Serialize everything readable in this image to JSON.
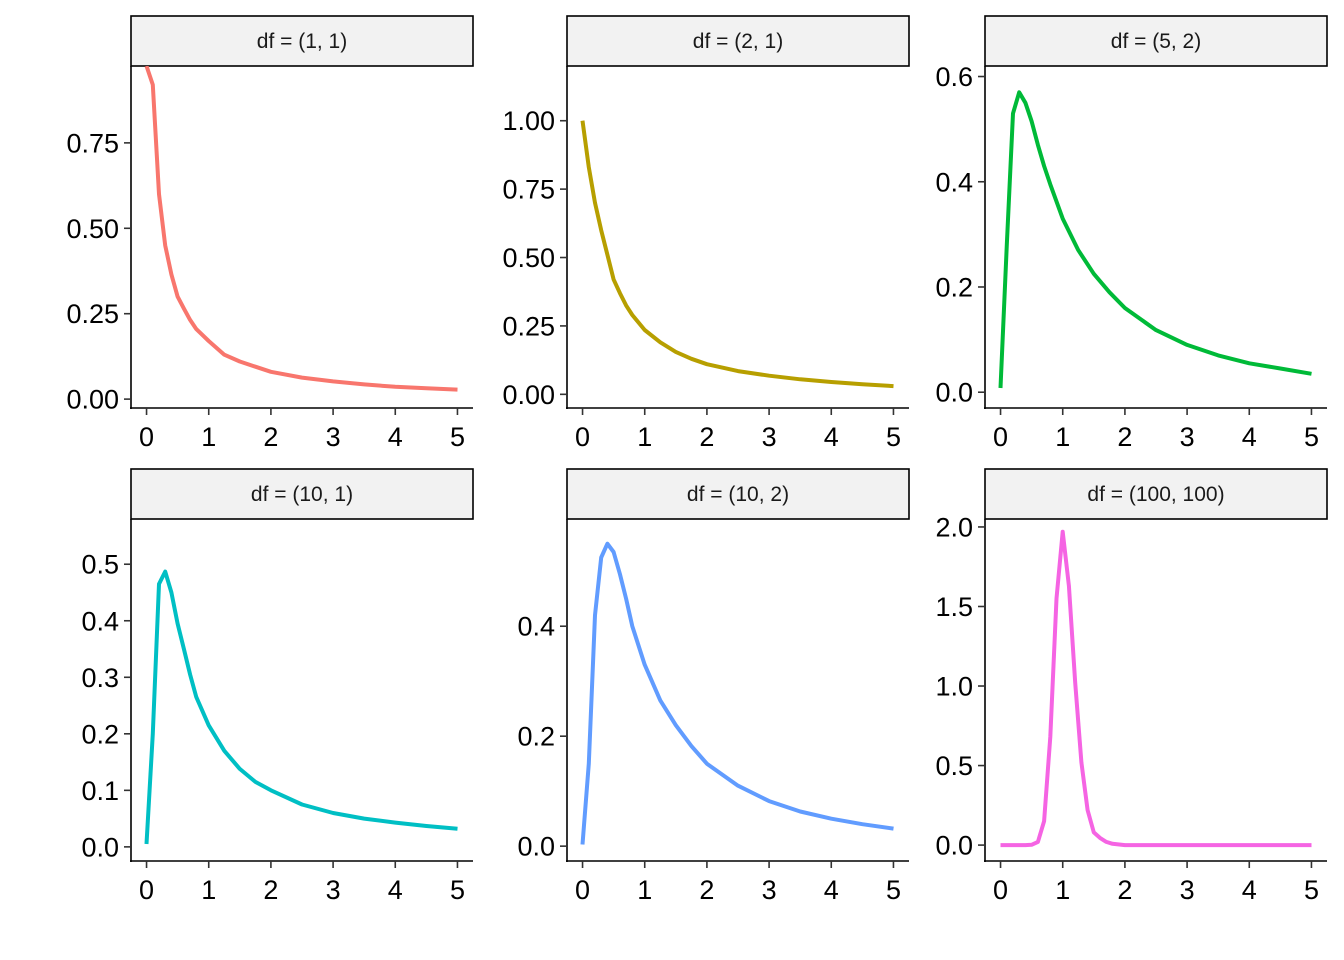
{
  "chart_data": [
    {
      "type": "line",
      "facet": "df = (1, 1)",
      "color": "#F8766D",
      "x": [
        0.0,
        0.1,
        0.2,
        0.3,
        0.4,
        0.5,
        0.6,
        0.7,
        0.8,
        1.0,
        1.25,
        1.5,
        1.75,
        2.0,
        2.5,
        3.0,
        3.5,
        4.0,
        4.5,
        5.0
      ],
      "y": [
        0.975,
        0.92,
        0.6,
        0.45,
        0.365,
        0.3,
        0.265,
        0.232,
        0.205,
        0.17,
        0.13,
        0.11,
        0.095,
        0.08,
        0.063,
        0.052,
        0.043,
        0.036,
        0.032,
        0.028
      ],
      "ylim": [
        -0.026,
        0.975
      ],
      "xlim": [
        -0.25,
        5.25
      ],
      "yticks": [
        0.0,
        0.25,
        0.5,
        0.75
      ],
      "ytick_labels": [
        "0.00",
        "0.25",
        "0.50",
        "0.75"
      ],
      "xticks": [
        0,
        1,
        2,
        3,
        4,
        5
      ],
      "xtick_labels": [
        "0",
        "1",
        "2",
        "3",
        "4",
        "5"
      ],
      "xlabel": "",
      "ylabel": ""
    },
    {
      "type": "line",
      "facet": "df = (2, 1)",
      "color": "#B79F00",
      "x": [
        0.0,
        0.1,
        0.2,
        0.3,
        0.4,
        0.5,
        0.6,
        0.7,
        0.8,
        1.0,
        1.25,
        1.5,
        1.75,
        2.0,
        2.5,
        3.0,
        3.5,
        4.0,
        4.5,
        5.0
      ],
      "y": [
        1.0,
        0.83,
        0.7,
        0.6,
        0.51,
        0.42,
        0.37,
        0.325,
        0.29,
        0.235,
        0.19,
        0.155,
        0.13,
        0.11,
        0.085,
        0.068,
        0.055,
        0.045,
        0.037,
        0.03
      ],
      "ylim": [
        -0.05,
        1.2
      ],
      "xlim": [
        -0.25,
        5.25
      ],
      "yticks": [
        0.0,
        0.25,
        0.5,
        0.75,
        1.0
      ],
      "ytick_labels": [
        "0.00",
        "0.25",
        "0.50",
        "0.75",
        "1.00"
      ],
      "xticks": [
        0,
        1,
        2,
        3,
        4,
        5
      ],
      "xtick_labels": [
        "0",
        "1",
        "2",
        "3",
        "4",
        "5"
      ],
      "xlabel": "",
      "ylabel": ""
    },
    {
      "type": "line",
      "facet": "df = (5, 2)",
      "color": "#00BA38",
      "x": [
        0.0,
        0.1,
        0.2,
        0.3,
        0.4,
        0.5,
        0.6,
        0.7,
        0.8,
        1.0,
        1.25,
        1.5,
        1.75,
        2.0,
        2.5,
        3.0,
        3.5,
        4.0,
        4.5,
        5.0
      ],
      "y": [
        0.008,
        0.28,
        0.53,
        0.57,
        0.55,
        0.515,
        0.47,
        0.43,
        0.395,
        0.33,
        0.27,
        0.225,
        0.19,
        0.16,
        0.118,
        0.09,
        0.07,
        0.055,
        0.045,
        0.035
      ],
      "ylim": [
        -0.03,
        0.62
      ],
      "xlim": [
        -0.25,
        5.25
      ],
      "yticks": [
        0.0,
        0.2,
        0.4,
        0.6
      ],
      "ytick_labels": [
        "0.0",
        "0.2",
        "0.4",
        "0.6"
      ],
      "xticks": [
        0,
        1,
        2,
        3,
        4,
        5
      ],
      "xtick_labels": [
        "0",
        "1",
        "2",
        "3",
        "4",
        "5"
      ],
      "xlabel": "",
      "ylabel": ""
    },
    {
      "type": "line",
      "facet": "df = (10, 1)",
      "color": "#00BFC4",
      "x": [
        0.0,
        0.1,
        0.2,
        0.3,
        0.4,
        0.5,
        0.6,
        0.7,
        0.8,
        1.0,
        1.25,
        1.5,
        1.75,
        2.0,
        2.5,
        3.0,
        3.5,
        4.0,
        4.5,
        5.0
      ],
      "y": [
        0.005,
        0.2,
        0.465,
        0.487,
        0.45,
        0.395,
        0.35,
        0.305,
        0.265,
        0.215,
        0.17,
        0.138,
        0.115,
        0.1,
        0.075,
        0.06,
        0.05,
        0.043,
        0.037,
        0.032
      ],
      "ylim": [
        -0.025,
        0.58
      ],
      "xlim": [
        -0.25,
        5.25
      ],
      "yticks": [
        0.0,
        0.1,
        0.2,
        0.3,
        0.4,
        0.5
      ],
      "ytick_labels": [
        "0.0",
        "0.1",
        "0.2",
        "0.3",
        "0.4",
        "0.5"
      ],
      "xticks": [
        0,
        1,
        2,
        3,
        4,
        5
      ],
      "xtick_labels": [
        "0",
        "1",
        "2",
        "3",
        "4",
        "5"
      ],
      "xlabel": "",
      "ylabel": ""
    },
    {
      "type": "line",
      "facet": "df = (10, 2)",
      "color": "#619CFF",
      "x": [
        0.0,
        0.1,
        0.2,
        0.3,
        0.4,
        0.5,
        0.6,
        0.7,
        0.8,
        1.0,
        1.25,
        1.5,
        1.75,
        2.0,
        2.5,
        3.0,
        3.5,
        4.0,
        4.5,
        5.0
      ],
      "y": [
        0.003,
        0.15,
        0.42,
        0.525,
        0.55,
        0.535,
        0.495,
        0.45,
        0.4,
        0.33,
        0.265,
        0.22,
        0.182,
        0.15,
        0.11,
        0.082,
        0.063,
        0.05,
        0.04,
        0.032
      ],
      "ylim": [
        -0.027,
        0.595
      ],
      "xlim": [
        -0.25,
        5.25
      ],
      "yticks": [
        0.0,
        0.2,
        0.4
      ],
      "ytick_labels": [
        "0.0",
        "0.2",
        "0.4"
      ],
      "xticks": [
        0,
        1,
        2,
        3,
        4,
        5
      ],
      "xtick_labels": [
        "0",
        "1",
        "2",
        "3",
        "4",
        "5"
      ],
      "xlabel": "",
      "ylabel": ""
    },
    {
      "type": "line",
      "facet": "df = (100, 100)",
      "color": "#F564E3",
      "x": [
        0.0,
        0.2,
        0.3,
        0.4,
        0.5,
        0.6,
        0.7,
        0.8,
        0.9,
        1.0,
        1.1,
        1.2,
        1.3,
        1.4,
        1.5,
        1.6,
        1.7,
        1.8,
        2.0,
        2.5,
        3.0,
        3.5,
        4.0,
        4.5,
        5.0
      ],
      "y": [
        0.0,
        0.0,
        0.0,
        0.0,
        0.002,
        0.02,
        0.15,
        0.68,
        1.55,
        1.97,
        1.63,
        1.02,
        0.52,
        0.22,
        0.08,
        0.045,
        0.02,
        0.008,
        0.0,
        0.0,
        0.0,
        0.0,
        0.0,
        0.0,
        0.0
      ],
      "ylim": [
        -0.1,
        2.05
      ],
      "xlim": [
        -0.25,
        5.25
      ],
      "yticks": [
        0.0,
        0.5,
        1.0,
        1.5,
        2.0
      ],
      "ytick_labels": [
        "0.0",
        "0.5",
        "1.0",
        "1.5",
        "2.0"
      ],
      "xticks": [
        0,
        1,
        2,
        3,
        4,
        5
      ],
      "xtick_labels": [
        "0",
        "1",
        "2",
        "3",
        "4",
        "5"
      ],
      "xlabel": "",
      "ylabel": ""
    }
  ]
}
